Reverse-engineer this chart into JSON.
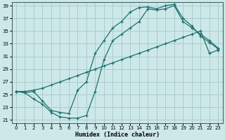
{
  "xlabel": "Humidex (Indice chaleur)",
  "bg_color": "#cde8e8",
  "grid_color": "#aacccc",
  "line_color": "#1a7070",
  "xlim": [
    -0.5,
    23.5
  ],
  "ylim": [
    20.5,
    39.5
  ],
  "xticks": [
    0,
    1,
    2,
    3,
    4,
    5,
    6,
    7,
    8,
    9,
    10,
    11,
    12,
    13,
    14,
    15,
    16,
    17,
    18,
    19,
    20,
    21,
    22,
    23
  ],
  "yticks": [
    21,
    23,
    25,
    27,
    29,
    31,
    33,
    35,
    37,
    39
  ],
  "curve_bottom_x": [
    0,
    1,
    2,
    3,
    4,
    5,
    6,
    7,
    8,
    9,
    10,
    11,
    12,
    13,
    14,
    15,
    16,
    17,
    18,
    19,
    20,
    21,
    22,
    23
  ],
  "curve_bottom_y": [
    25.5,
    25.3,
    24.3,
    23.5,
    22.2,
    21.5,
    21.3,
    21.3,
    21.7,
    25.5,
    30.5,
    33.5,
    34.5,
    35.5,
    36.5,
    38.5,
    38.3,
    38.5,
    39.0,
    36.5,
    35.5,
    34.5,
    33.5,
    32.3
  ],
  "curve_diag_x": [
    0,
    1,
    2,
    3,
    4,
    5,
    6,
    7,
    8,
    9,
    10,
    11,
    12,
    13,
    14,
    15,
    16,
    17,
    18,
    19,
    20,
    21,
    22,
    23
  ],
  "curve_diag_y": [
    25.5,
    25.5,
    25.7,
    26.0,
    26.5,
    27.0,
    27.5,
    28.0,
    28.5,
    29.0,
    29.5,
    30.0,
    30.5,
    31.0,
    31.5,
    32.0,
    32.5,
    33.0,
    33.5,
    34.0,
    34.5,
    35.0,
    31.5,
    32.0
  ],
  "curve_top_x": [
    0,
    1,
    2,
    3,
    4,
    5,
    6,
    7,
    8,
    9,
    10,
    11,
    12,
    13,
    14,
    15,
    16,
    17,
    18,
    19,
    20,
    21,
    22,
    23
  ],
  "curve_top_y": [
    25.5,
    25.3,
    25.5,
    24.0,
    22.5,
    22.2,
    22.0,
    25.7,
    27.0,
    31.5,
    33.5,
    35.5,
    36.5,
    38.0,
    38.7,
    38.8,
    38.5,
    39.0,
    39.2,
    37.0,
    35.8,
    34.2,
    33.2,
    32.2
  ]
}
